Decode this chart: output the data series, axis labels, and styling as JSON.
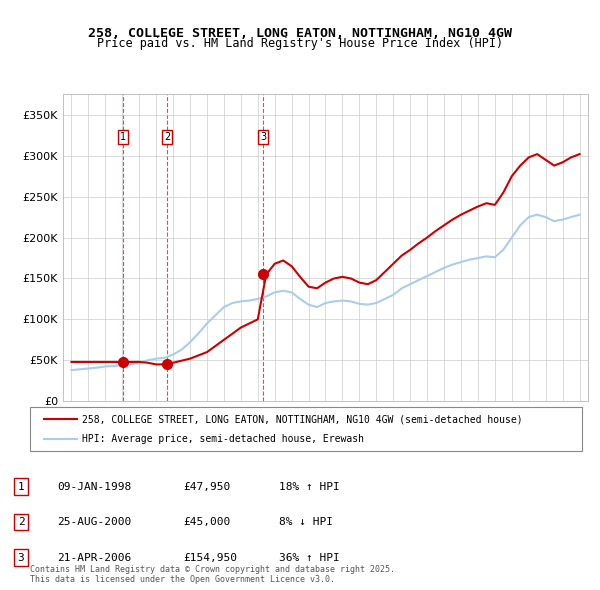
{
  "title_line1": "258, COLLEGE STREET, LONG EATON, NOTTINGHAM, NG10 4GW",
  "title_line2": "Price paid vs. HM Land Registry's House Price Index (HPI)",
  "legend_line1": "258, COLLEGE STREET, LONG EATON, NOTTINGHAM, NG10 4GW (semi-detached house)",
  "legend_line2": "HPI: Average price, semi-detached house, Erewash",
  "footer": "Contains HM Land Registry data © Crown copyright and database right 2025.\nThis data is licensed under the Open Government Licence v3.0.",
  "property_color": "#cc0000",
  "hpi_color": "#aaccee",
  "sale_marker_color": "#cc0000",
  "vline_color": "#cc0000",
  "ylim": [
    0,
    375000
  ],
  "yticks": [
    0,
    50000,
    100000,
    150000,
    200000,
    250000,
    300000,
    350000
  ],
  "ytick_labels": [
    "£0",
    "£50K",
    "£100K",
    "£150K",
    "£200K",
    "£250K",
    "£300K",
    "£350K"
  ],
  "sales": [
    {
      "date_num": 1998.03,
      "price": 47950,
      "label": "1"
    },
    {
      "date_num": 2000.65,
      "price": 45000,
      "label": "2"
    },
    {
      "date_num": 2006.31,
      "price": 154950,
      "label": "3"
    }
  ],
  "table_rows": [
    {
      "num": "1",
      "date": "09-JAN-1998",
      "price": "£47,950",
      "hpi": "18% ↑ HPI"
    },
    {
      "num": "2",
      "date": "25-AUG-2000",
      "price": "£45,000",
      "hpi": "8% ↓ HPI"
    },
    {
      "num": "3",
      "date": "21-APR-2006",
      "price": "£154,950",
      "hpi": "36% ↑ HPI"
    }
  ],
  "hpi_data": {
    "years": [
      1995.0,
      1995.5,
      1996.0,
      1996.5,
      1997.0,
      1997.5,
      1998.0,
      1998.5,
      1999.0,
      1999.5,
      2000.0,
      2000.5,
      2001.0,
      2001.5,
      2002.0,
      2002.5,
      2003.0,
      2003.5,
      2004.0,
      2004.5,
      2005.0,
      2005.5,
      2006.0,
      2006.5,
      2007.0,
      2007.5,
      2008.0,
      2008.5,
      2009.0,
      2009.5,
      2010.0,
      2010.5,
      2011.0,
      2011.5,
      2012.0,
      2012.5,
      2013.0,
      2013.5,
      2014.0,
      2014.5,
      2015.0,
      2015.5,
      2016.0,
      2016.5,
      2017.0,
      2017.5,
      2018.0,
      2018.5,
      2019.0,
      2019.5,
      2020.0,
      2020.5,
      2021.0,
      2021.5,
      2022.0,
      2022.5,
      2023.0,
      2023.5,
      2024.0,
      2024.5,
      2025.0
    ],
    "values": [
      38000,
      39000,
      40000,
      41000,
      42500,
      43000,
      44000,
      45000,
      47000,
      50000,
      52000,
      53000,
      57000,
      63000,
      72000,
      83000,
      95000,
      105000,
      115000,
      120000,
      122000,
      123000,
      125000,
      128000,
      133000,
      135000,
      133000,
      125000,
      118000,
      115000,
      120000,
      122000,
      123000,
      122000,
      119000,
      118000,
      120000,
      125000,
      130000,
      138000,
      143000,
      148000,
      153000,
      158000,
      163000,
      167000,
      170000,
      173000,
      175000,
      177000,
      176000,
      185000,
      200000,
      215000,
      225000,
      228000,
      225000,
      220000,
      222000,
      225000,
      228000
    ]
  },
  "property_data": {
    "years": [
      1995.0,
      1996.0,
      1997.0,
      1998.0,
      1998.5,
      1999.0,
      1999.5,
      2000.0,
      2000.5,
      2001.0,
      2002.0,
      2003.0,
      2004.0,
      2005.0,
      2006.0,
      2006.5,
      2007.0,
      2007.5,
      2008.0,
      2008.5,
      2009.0,
      2009.5,
      2010.0,
      2010.5,
      2011.0,
      2011.5,
      2012.0,
      2012.5,
      2013.0,
      2013.5,
      2014.0,
      2014.5,
      2015.0,
      2015.5,
      2016.0,
      2016.5,
      2017.0,
      2017.5,
      2018.0,
      2018.5,
      2019.0,
      2019.5,
      2020.0,
      2020.5,
      2021.0,
      2021.5,
      2022.0,
      2022.5,
      2023.0,
      2023.5,
      2024.0,
      2024.5,
      2025.0
    ],
    "values": [
      47950,
      47950,
      47950,
      47950,
      47950,
      48000,
      47000,
      45000,
      45000,
      47000,
      52000,
      60000,
      75000,
      90000,
      100000,
      154950,
      168000,
      172000,
      165000,
      152000,
      140000,
      138000,
      145000,
      150000,
      152000,
      150000,
      145000,
      143000,
      148000,
      158000,
      168000,
      178000,
      185000,
      193000,
      200000,
      208000,
      215000,
      222000,
      228000,
      233000,
      238000,
      242000,
      240000,
      255000,
      275000,
      288000,
      298000,
      302000,
      295000,
      288000,
      292000,
      298000,
      302000
    ]
  }
}
